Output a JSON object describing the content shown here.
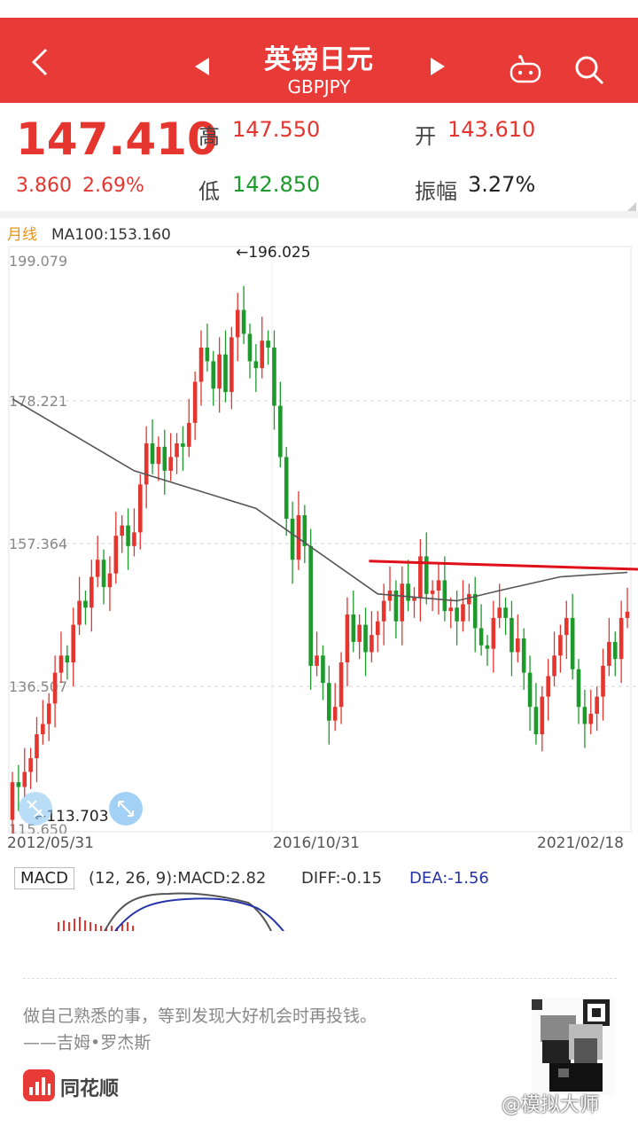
{
  "header": {
    "title": "英镑日元",
    "subtitle": "GBPJPY"
  },
  "quote": {
    "price": "147.410",
    "change": "3.860",
    "change_pct": "2.69%",
    "high_label": "高",
    "high": "147.550",
    "low_label": "低",
    "low": "142.850",
    "open_label": "开",
    "open": "143.610",
    "amplitude_label": "振幅",
    "amplitude": "3.27%"
  },
  "chart": {
    "period": "月线",
    "ma_text": "MA100:153.160",
    "y_ticks": [
      "199.079",
      "178.221",
      "157.364",
      "136.507",
      "115.650"
    ],
    "max_marker": "←196.025",
    "min_marker": "←113.703",
    "x_labels": [
      "2012/05/31",
      "2016/10/31",
      "2021/02/18"
    ],
    "colors": {
      "up": "#e4352f",
      "down": "#1d9a2b",
      "ma": "#555555",
      "trendline": "#e0101a"
    }
  },
  "chart_data": {
    "type": "candlestick",
    "title": "",
    "ylim": [
      113.0,
      200.0
    ],
    "x_range": [
      "2012/05/31",
      "2021/02/18"
    ],
    "closes": [
      122.5,
      121.8,
      124.0,
      126.0,
      129.5,
      131.0,
      134.0,
      138.5,
      141.0,
      140.0,
      145.5,
      149.0,
      148.0,
      152.5,
      155.0,
      151.0,
      153.0,
      158.5,
      160.0,
      157.0,
      159.0,
      166.0,
      172.0,
      169.0,
      171.5,
      168.0,
      170.0,
      172.0,
      171.5,
      175.0,
      181.0,
      186.0,
      184.0,
      180.0,
      185.0,
      179.5,
      187.5,
      191.5,
      188.0,
      184.0,
      183.0,
      187.0,
      186.0,
      177.5,
      170.0,
      161.0,
      155.0,
      161.5,
      157.0,
      139.5,
      141.0,
      137.0,
      131.5,
      133.5,
      140.0,
      147.0,
      143.0,
      145.5,
      141.5,
      144.0,
      146.0,
      149.0,
      150.5,
      146.0,
      151.5,
      149.0,
      149.5,
      155.5,
      150.0,
      150.5,
      152.0,
      147.5,
      148.0,
      146.0,
      148.5,
      150.0,
      145.0,
      142.5,
      142.0,
      146.5,
      148.0,
      146.5,
      141.5,
      143.5,
      138.5,
      133.5,
      129.5,
      135.0,
      138.0,
      141.0,
      144.0,
      146.5,
      139.0,
      133.5,
      131.0,
      132.5,
      135.0,
      139.5,
      143.0,
      140.5,
      146.5,
      147.41
    ],
    "ma100": {
      "x_index": [
        0,
        20,
        40,
        60,
        73,
        80,
        90,
        101
      ],
      "values": [
        178.5,
        168.0,
        162.5,
        150.0,
        149.0,
        150.5,
        152.5,
        153.16
      ]
    },
    "trendline": {
      "x_index": [
        59,
        102
      ],
      "values": [
        154.8,
        153.6
      ]
    }
  },
  "macd": {
    "tag": "MACD",
    "params": "(12, 26, 9):MACD:2.82",
    "diff": "DIFF:-0.15",
    "dea": "DEA:-1.56"
  },
  "footer": {
    "quote": "做自己熟悉的事，等到发现大好机会时再投钱。",
    "author": "——吉姆•罗杰斯",
    "brand": "同花顺",
    "watermark": "@模拟大师"
  }
}
